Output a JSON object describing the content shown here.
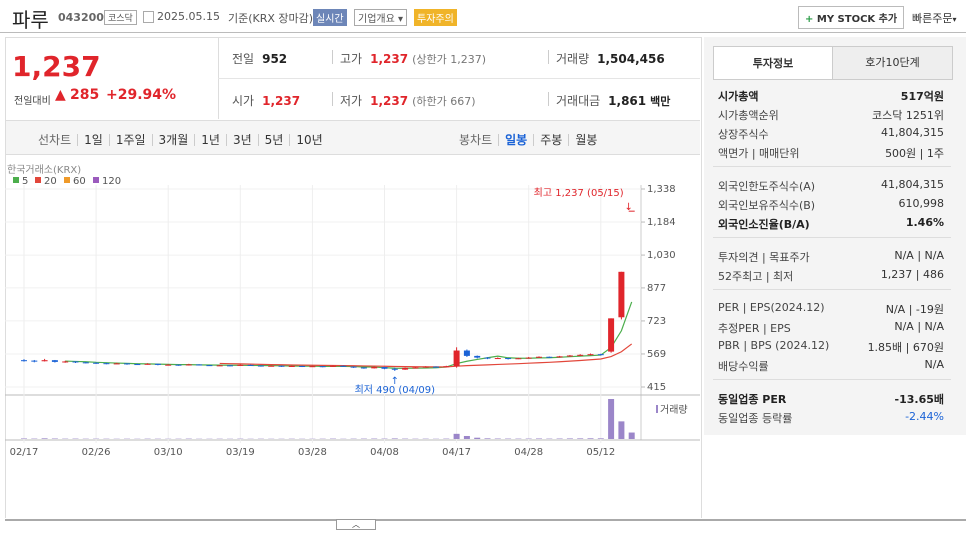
{
  "header": {
    "name": "파루",
    "code": "043200",
    "market": "코스닥",
    "date": "2025.05.15",
    "basis": "기준(KRX 장마감)",
    "tags": [
      "실시간",
      "기업개요",
      "투자주의"
    ],
    "my_stock": "MY STOCK 추가",
    "quick_order": "빠른주문"
  },
  "price": {
    "current": "1,237",
    "change_label": "전일대비",
    "change": "285",
    "rate": "+29.94%"
  },
  "quotes": [
    [
      {
        "label": "전일",
        "value": "952"
      },
      {
        "label": "고가",
        "value": "1,237",
        "note": "(상한가 1,237)"
      },
      {
        "label": "거래량",
        "value": "1,504,456"
      }
    ],
    [
      {
        "label": "시가",
        "value": "1,237"
      },
      {
        "label": "저가",
        "value": "1,237",
        "note": "(하한가 667)"
      },
      {
        "label": "거래대금",
        "value": "1,861",
        "note": "백만"
      }
    ]
  ],
  "line_tabs": {
    "label": "선차트",
    "items": [
      "1일",
      "1주일",
      "3개월",
      "1년",
      "3년",
      "5년",
      "10년"
    ]
  },
  "candle_tabs": {
    "label": "봉차트",
    "items": [
      "일봉",
      "주봉",
      "월봉"
    ],
    "selected": 0
  },
  "chart_data": {
    "type": "candlestick",
    "exchange": "한국거래소(KRX)",
    "categories": [
      "02/17",
      null,
      null,
      null,
      null,
      null,
      null,
      "02/26",
      null,
      null,
      null,
      null,
      null,
      null,
      "03/10",
      null,
      null,
      null,
      null,
      null,
      null,
      "03/19",
      null,
      null,
      null,
      null,
      null,
      null,
      "03/28",
      null,
      null,
      null,
      null,
      null,
      null,
      "04/08",
      null,
      null,
      null,
      null,
      null,
      null,
      "04/17",
      null,
      null,
      null,
      null,
      null,
      null,
      "04/28",
      null,
      null,
      null,
      null,
      null,
      null,
      "05/12",
      null,
      null,
      null
    ],
    "ohlc": [
      [
        540,
        545,
        533,
        538
      ],
      [
        538,
        541,
        530,
        535
      ],
      [
        535,
        546,
        534,
        540
      ],
      [
        540,
        541,
        529,
        532
      ],
      [
        532,
        537,
        528,
        534
      ],
      [
        534,
        535,
        527,
        530
      ],
      [
        530,
        532,
        525,
        528
      ],
      [
        528,
        530,
        523,
        526
      ],
      [
        526,
        528,
        521,
        524
      ],
      [
        524,
        528,
        522,
        525
      ],
      [
        525,
        526,
        519,
        522
      ],
      [
        522,
        524,
        518,
        520
      ],
      [
        520,
        526,
        519,
        523
      ],
      [
        523,
        524,
        516,
        518
      ],
      [
        518,
        522,
        516,
        519
      ],
      [
        519,
        520,
        514,
        516
      ],
      [
        516,
        523,
        515,
        520
      ],
      [
        520,
        521,
        515,
        517
      ],
      [
        517,
        518,
        513,
        515
      ],
      [
        515,
        519,
        514,
        516
      ],
      [
        516,
        517,
        512,
        514
      ],
      [
        514,
        520,
        513,
        518
      ],
      [
        518,
        519,
        513,
        515
      ],
      [
        515,
        516,
        510,
        512
      ],
      [
        512,
        516,
        511,
        514
      ],
      [
        514,
        515,
        509,
        511
      ],
      [
        511,
        515,
        510,
        513
      ],
      [
        513,
        514,
        508,
        510
      ],
      [
        510,
        514,
        509,
        512
      ],
      [
        512,
        513,
        507,
        509
      ],
      [
        509,
        516,
        508,
        514
      ],
      [
        514,
        515,
        509,
        510
      ],
      [
        510,
        511,
        504,
        506
      ],
      [
        506,
        507,
        500,
        502
      ],
      [
        502,
        510,
        501,
        508
      ],
      [
        508,
        509,
        498,
        500
      ],
      [
        500,
        505,
        490,
        496
      ],
      [
        496,
        506,
        495,
        504
      ],
      [
        504,
        508,
        502,
        506
      ],
      [
        506,
        512,
        505,
        510
      ],
      [
        510,
        511,
        506,
        508
      ],
      [
        508,
        514,
        507,
        512
      ],
      [
        512,
        600,
        505,
        585
      ],
      [
        585,
        590,
        555,
        560
      ],
      [
        560,
        562,
        548,
        552
      ],
      [
        552,
        554,
        545,
        548
      ],
      [
        548,
        553,
        546,
        550
      ],
      [
        550,
        551,
        543,
        546
      ],
      [
        546,
        551,
        545,
        549
      ],
      [
        549,
        555,
        547,
        552
      ],
      [
        552,
        558,
        550,
        556
      ],
      [
        556,
        557,
        551,
        553
      ],
      [
        553,
        560,
        552,
        558
      ],
      [
        558,
        564,
        556,
        562
      ],
      [
        562,
        568,
        560,
        565
      ],
      [
        565,
        571,
        563,
        568
      ],
      [
        568,
        570,
        562,
        566
      ],
      [
        580,
        735,
        575,
        735
      ],
      [
        740,
        952,
        730,
        952
      ],
      [
        1237,
        1237,
        1237,
        1237
      ]
    ],
    "volume": [
      120000,
      90000,
      150000,
      110000,
      80000,
      90000,
      70000,
      80000,
      70000,
      60000,
      70000,
      60000,
      80000,
      70000,
      60000,
      70000,
      90000,
      60000,
      60000,
      70000,
      60000,
      80000,
      60000,
      70000,
      60000,
      60000,
      70000,
      60000,
      60000,
      70000,
      90000,
      60000,
      80000,
      90000,
      100000,
      90000,
      130000,
      90000,
      70000,
      80000,
      60000,
      90000,
      1200000,
      700000,
      300000,
      150000,
      110000,
      100000,
      90000,
      100000,
      120000,
      90000,
      110000,
      130000,
      140000,
      160000,
      150000,
      9300000,
      4100000,
      1504456
    ],
    "volume_label": "거래량",
    "up_color": "#e0252b",
    "down_color": "#1a62d6",
    "moving_averages": [
      {
        "name": "5",
        "color": "#4cae4c"
      },
      {
        "name": "20",
        "color": "#e2473b"
      },
      {
        "name": "60",
        "color": "#ef9a2a"
      },
      {
        "name": "120",
        "color": "#9b5bbd"
      }
    ],
    "ylim": [
      415,
      1338
    ],
    "yticks": [
      {
        "value": 415,
        "label": "415"
      },
      {
        "value": 569,
        "label": "569"
      },
      {
        "value": 723,
        "label": "723"
      },
      {
        "value": 877,
        "label": "877"
      },
      {
        "value": 1030,
        "label": "1,030"
      },
      {
        "value": 1184,
        "label": "1,184"
      },
      {
        "value": 1338,
        "label": "1,338"
      }
    ],
    "annotations": {
      "high": "최고 1,237 (05/15)",
      "low": "최저 490 (04/09)"
    }
  },
  "side": {
    "tabs": [
      "투자정보",
      "호가10단계"
    ],
    "sections": [
      [
        {
          "label": "시가총액",
          "value": "517억원",
          "bold": true
        },
        {
          "label": "시가총액순위",
          "value": "코스닥 1251위"
        },
        {
          "label": "상장주식수",
          "value": "41,804,315"
        },
        {
          "label": "액면가 | 매매단위",
          "value": "500원 | 1주"
        }
      ],
      [
        {
          "label": "외국인한도주식수(A)",
          "value": "41,804,315"
        },
        {
          "label": "외국인보유주식수(B)",
          "value": "610,998"
        },
        {
          "label": "외국인소진율(B/A)",
          "value": "1.46%",
          "bold": true
        }
      ],
      [
        {
          "label": "투자의견 | 목표주가",
          "value": "N/A | N/A"
        },
        {
          "label": "52주최고 | 최저",
          "value": "1,237 | 486"
        }
      ],
      [
        {
          "label": "PER | EPS(2024.12)",
          "value": "N/A | -19원"
        },
        {
          "label": "추정PER | EPS",
          "value": "N/A | N/A"
        },
        {
          "label": "PBR | BPS (2024.12)",
          "value": "1.85배 | 670원"
        },
        {
          "label": "배당수익률",
          "value": "N/A"
        }
      ],
      [
        {
          "label": "동일업종 PER",
          "value": "-13.65배",
          "bold": true
        },
        {
          "label": "동일업종 등락률",
          "value": "-2.44%",
          "blue": true
        }
      ]
    ]
  }
}
